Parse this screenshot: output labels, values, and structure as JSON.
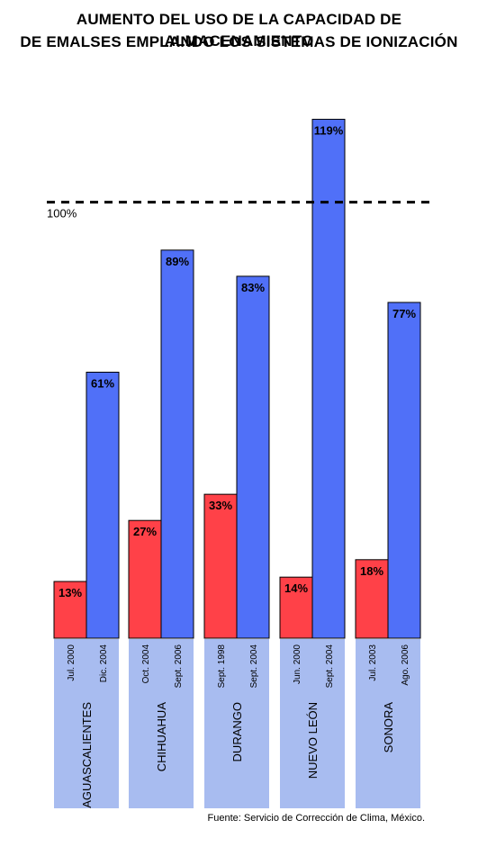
{
  "title_line_1": "AUMENTO DEL USO DE LA CAPACIDAD DE ALMACENAMIENTO",
  "title_line_2": "DE EMALSES EMPLANDO LOS SISTEMAS DE IONIZACIÓN",
  "source": "Fuente: Servicio de Corrección de Clima, México.",
  "colors": {
    "before": "#ff4148",
    "after": "#5070f8",
    "category_band": "#a8bcf0",
    "text": "#000000"
  },
  "chart_data": {
    "type": "bar",
    "title": "AUMENTO DEL USO DE LA CAPACIDAD DE ALMACENAMIENTO DE EMALSES EMPLANDO LOS SISTEMAS DE IONIZACIÓN",
    "ylim": [
      0,
      122
    ],
    "reference_line": {
      "value": 100,
      "label": "100%",
      "style": "dashed"
    },
    "grid": false,
    "categories": [
      {
        "name": "AGUASCALIENTES",
        "bars": [
          {
            "date": "Jul. 2000",
            "value": 13,
            "label": "13%",
            "color": "#ff4148"
          },
          {
            "date": "Dic. 2004",
            "value": 61,
            "label": "61%",
            "color": "#5070f8"
          }
        ]
      },
      {
        "name": "CHIHUAHUA",
        "bars": [
          {
            "date": "Oct. 2004",
            "value": 27,
            "label": "27%",
            "color": "#ff4148"
          },
          {
            "date": "Sept. 2006",
            "value": 89,
            "label": "89%",
            "color": "#5070f8"
          }
        ]
      },
      {
        "name": "DURANGO",
        "bars": [
          {
            "date": "Sept. 1998",
            "value": 33,
            "label": "33%",
            "color": "#ff4148"
          },
          {
            "date": "Sept. 2004",
            "value": 83,
            "label": "83%",
            "color": "#5070f8"
          }
        ]
      },
      {
        "name": "NUEVO LEÓN",
        "bars": [
          {
            "date": "Jun. 2000",
            "value": 14,
            "label": "14%",
            "color": "#ff4148"
          },
          {
            "date": "Sept. 2004",
            "value": 119,
            "label": "119%",
            "color": "#5070f8"
          }
        ]
      },
      {
        "name": "SONORA",
        "bars": [
          {
            "date": "Jul. 2003",
            "value": 18,
            "label": "18%",
            "color": "#ff4148"
          },
          {
            "date": "Ago. 2006",
            "value": 77,
            "label": "77%",
            "color": "#5070f8"
          }
        ]
      }
    ]
  }
}
